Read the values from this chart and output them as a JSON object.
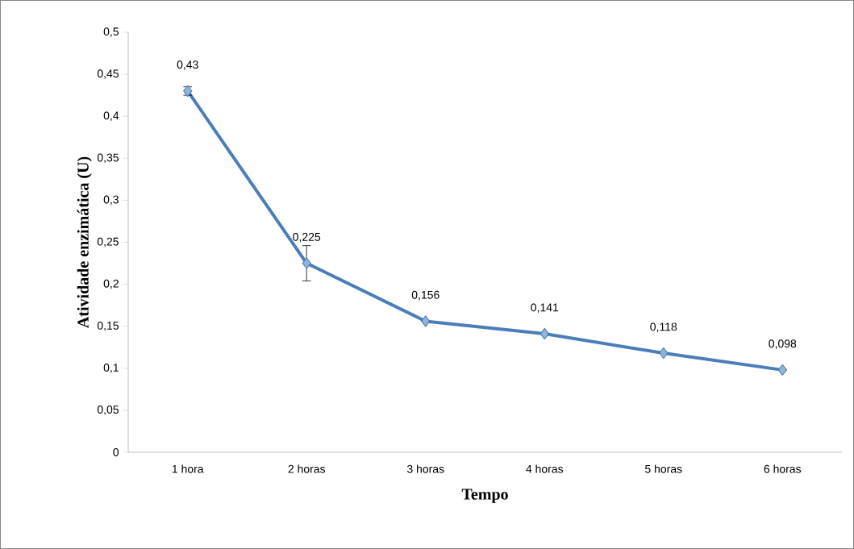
{
  "chart_data": {
    "type": "line",
    "xlabel": "Tempo",
    "ylabel": "Atividade enzimática (U)",
    "categories": [
      "1 hora",
      "2 horas",
      "3 horas",
      "4 horas",
      "5 horas",
      "6 horas"
    ],
    "series": [
      {
        "color": "#4a7ebb",
        "values": [
          0.43,
          0.225,
          0.156,
          0.141,
          0.118,
          0.098
        ],
        "errors": [
          0.005,
          0.021,
          null,
          null,
          null,
          null
        ],
        "value_labels": [
          "0,43",
          "0,225",
          "0,156",
          "0,141",
          "0,118",
          "0,098"
        ]
      }
    ],
    "ylim": [
      0,
      0.5
    ],
    "yticks": [
      0,
      {
        "value": 0.05,
        "label": "0,05"
      },
      {
        "value": 0.1,
        "label": "0,1"
      },
      {
        "value": 0.15,
        "label": "0,15"
      },
      {
        "value": 0.2,
        "label": "0,2"
      },
      {
        "value": 0.25,
        "label": "0,25"
      },
      {
        "value": 0.3,
        "label": "0,3"
      },
      {
        "value": 0.35,
        "label": "0,35"
      },
      {
        "value": 0.4,
        "label": "0,4"
      },
      {
        "value": 0.45,
        "label": "0,45"
      },
      {
        "value": 0.5,
        "label": "0,5"
      }
    ],
    "marker": "diamond",
    "line_style": "solid",
    "grid": false
  }
}
